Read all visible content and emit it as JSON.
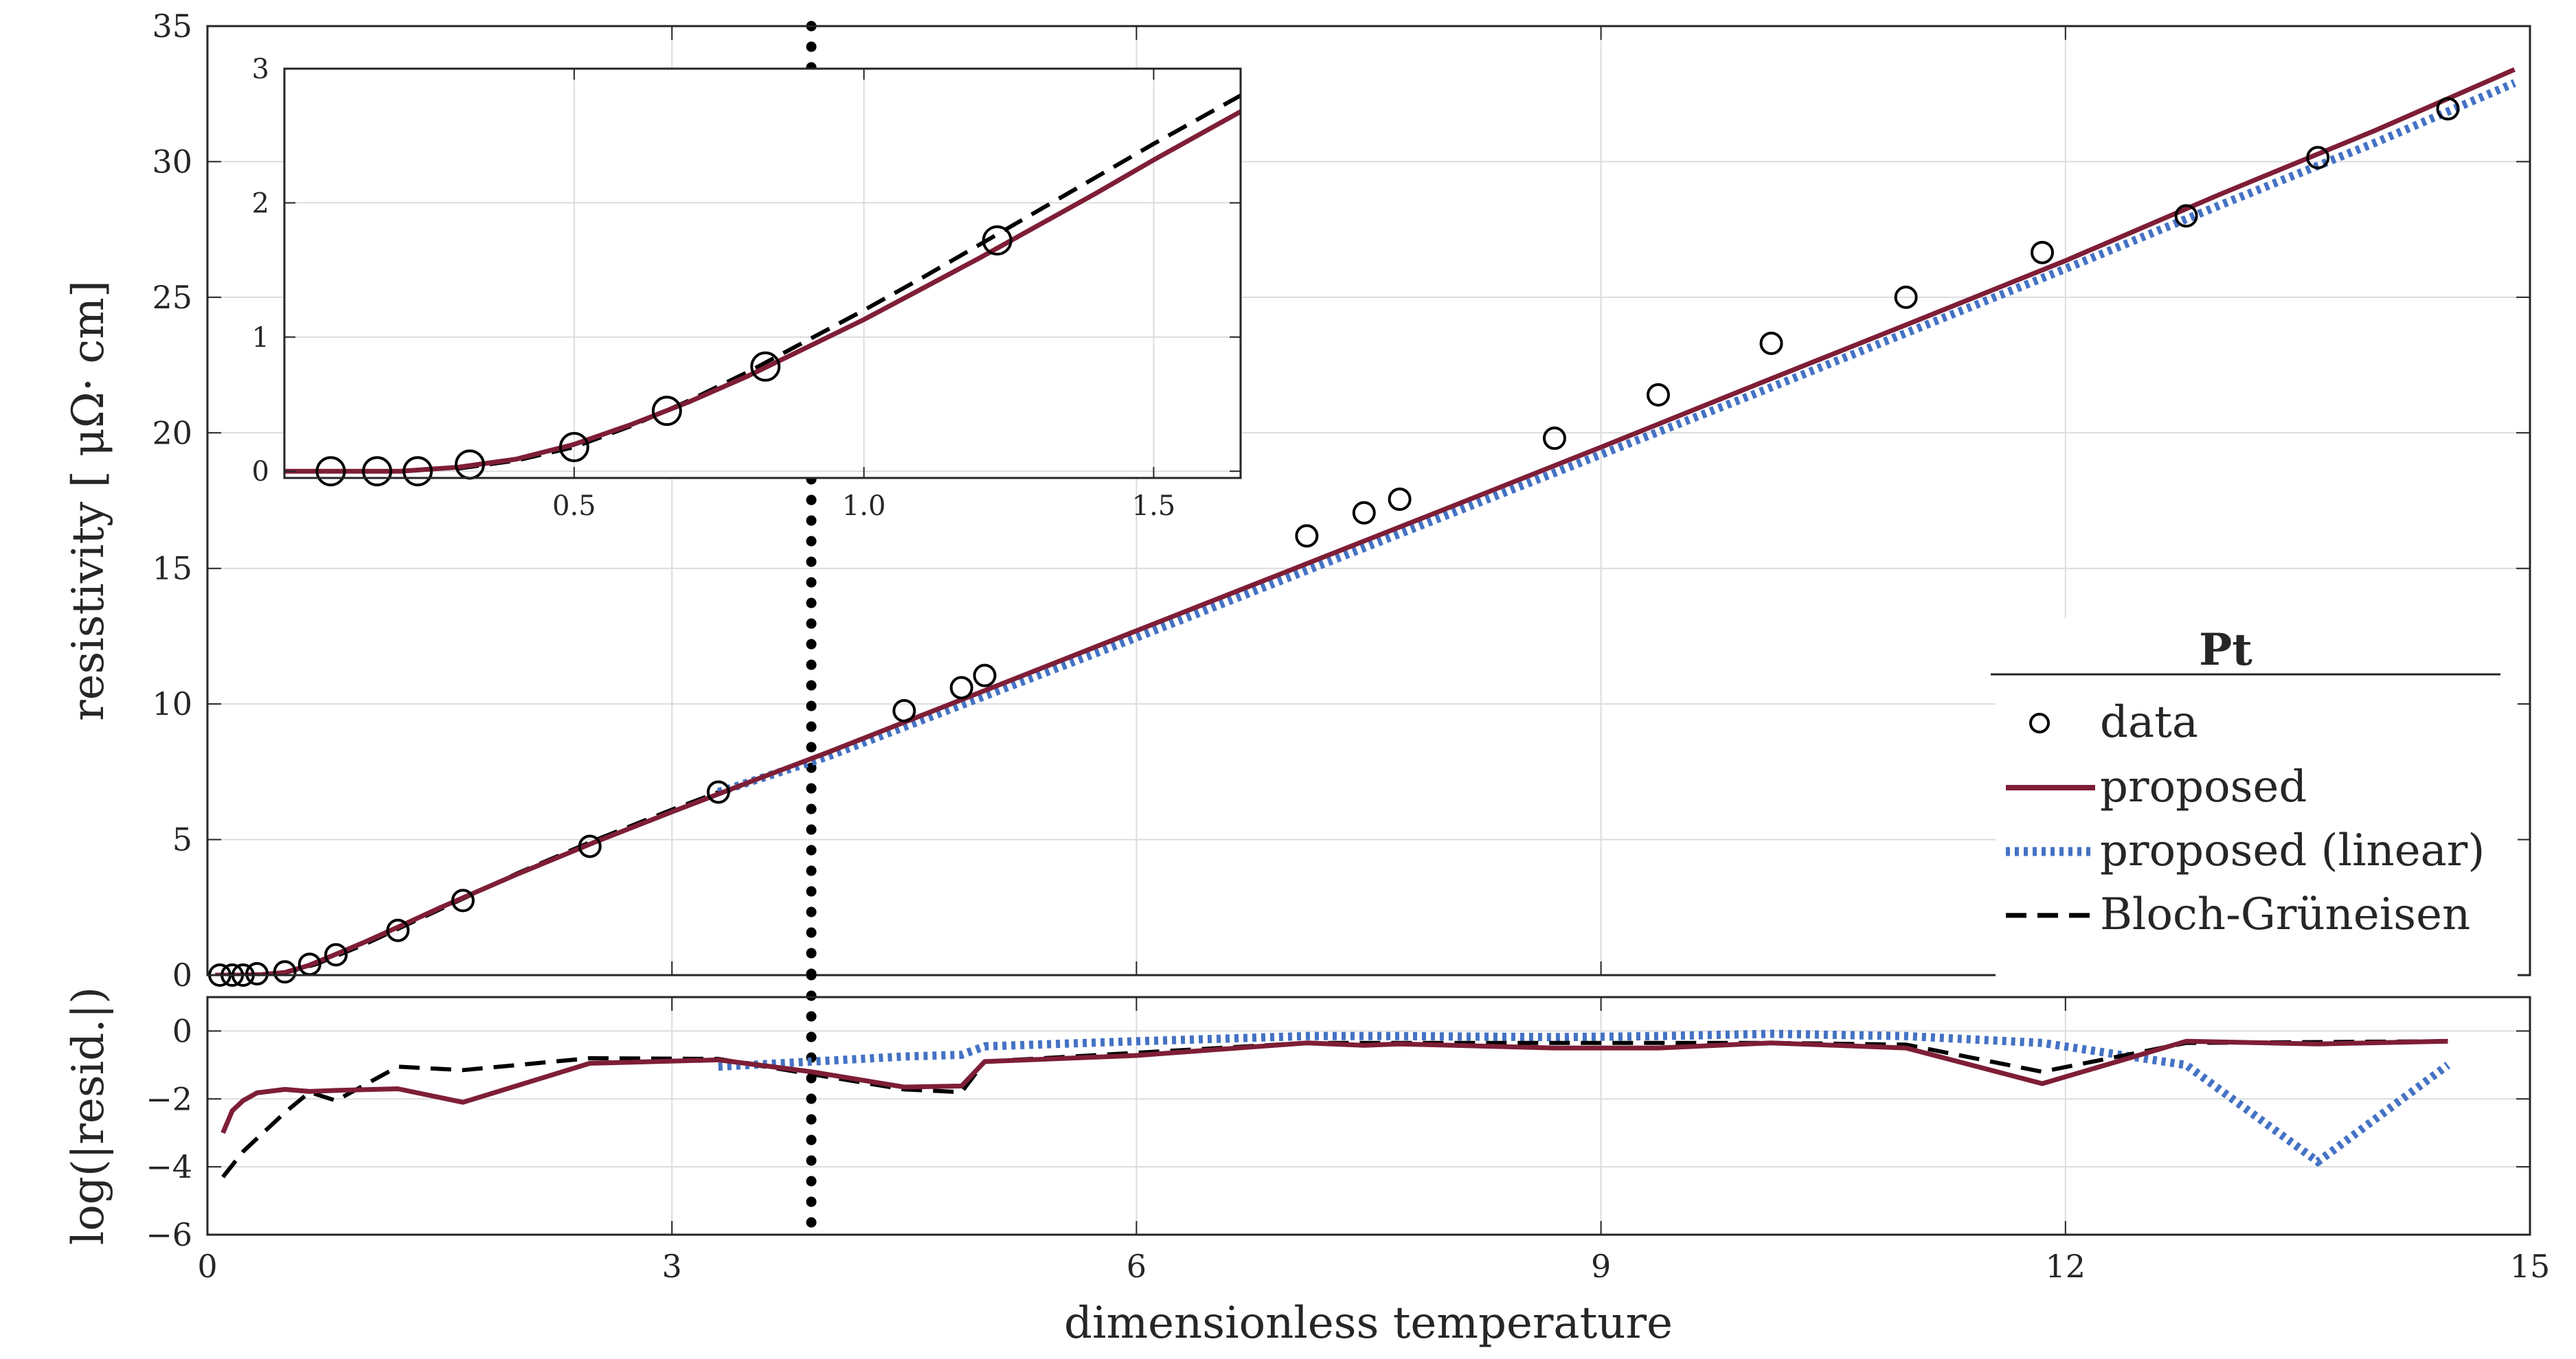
{
  "colors": {
    "proposed": "#7e1e36",
    "proposed_linear": "#4472c4",
    "bloch": "#000000",
    "data": "#000000",
    "grid": "#dcdcdc",
    "axis": "#262626"
  },
  "chart_data": [
    {
      "type": "line",
      "panel": "main",
      "xlabel": "",
      "ylabel": "resistivity [ μΩ· cm]",
      "xlim": [
        0,
        15
      ],
      "ylim": [
        0,
        35
      ],
      "x_ticks": [
        "0",
        "3",
        "6",
        "9",
        "12",
        "15"
      ],
      "y_ticks": [
        "0",
        "5",
        "10",
        "15",
        "20",
        "25",
        "30",
        "35"
      ],
      "grid": true,
      "vline_x": 3.9,
      "legend": {
        "placement": "bottom-right",
        "title": "Pt",
        "entries": [
          "data",
          "proposed",
          "proposed (linear)",
          "Bloch-Grüneisen"
        ]
      },
      "series": [
        {
          "name": "data",
          "style": "markers",
          "points": [
            [
              0.08,
              0.0
            ],
            [
              0.16,
              0.0
            ],
            [
              0.23,
              0.0
            ],
            [
              0.32,
              0.05
            ],
            [
              0.5,
              0.12
            ],
            [
              0.66,
              0.4
            ],
            [
              0.83,
              0.75
            ],
            [
              1.23,
              1.65
            ],
            [
              1.65,
              2.75
            ],
            [
              2.47,
              4.75
            ],
            [
              3.3,
              6.75
            ],
            [
              4.5,
              9.75
            ],
            [
              4.87,
              10.6
            ],
            [
              5.02,
              11.05
            ],
            [
              7.1,
              16.2
            ],
            [
              7.47,
              17.05
            ],
            [
              7.7,
              17.55
            ],
            [
              8.7,
              19.8
            ],
            [
              9.37,
              21.4
            ],
            [
              10.1,
              23.3
            ],
            [
              10.97,
              25.0
            ],
            [
              11.85,
              26.65
            ],
            [
              12.78,
              28.0
            ],
            [
              13.63,
              30.15
            ],
            [
              14.47,
              31.95
            ]
          ]
        },
        {
          "name": "proposed",
          "style": "solid",
          "points": [
            [
              0.05,
              0.0
            ],
            [
              0.2,
              0.0
            ],
            [
              0.35,
              0.02
            ],
            [
              0.5,
              0.1
            ],
            [
              0.65,
              0.35
            ],
            [
              0.8,
              0.7
            ],
            [
              1.0,
              1.18
            ],
            [
              1.25,
              1.82
            ],
            [
              1.5,
              2.48
            ],
            [
              2.0,
              3.72
            ],
            [
              2.5,
              4.9
            ],
            [
              3.0,
              6.02
            ],
            [
              3.5,
              7.12
            ],
            [
              4.0,
              8.2
            ],
            [
              5.0,
              10.45
            ],
            [
              6.0,
              12.7
            ],
            [
              7.0,
              14.95
            ],
            [
              8.0,
              17.2
            ],
            [
              9.0,
              19.47
            ],
            [
              10.0,
              21.77
            ],
            [
              11.0,
              24.05
            ],
            [
              12.0,
              26.35
            ],
            [
              13.0,
              28.8
            ],
            [
              14.0,
              31.15
            ],
            [
              14.9,
              33.4
            ]
          ]
        },
        {
          "name": "proposed (linear)",
          "style": "dotted",
          "points": [
            [
              3.3,
              6.75
            ],
            [
              4.0,
              8.05
            ],
            [
              5.0,
              10.25
            ],
            [
              6.0,
              12.45
            ],
            [
              7.0,
              14.7
            ],
            [
              8.0,
              16.95
            ],
            [
              9.0,
              19.2
            ],
            [
              10.0,
              21.45
            ],
            [
              11.0,
              23.75
            ],
            [
              12.0,
              26.05
            ],
            [
              13.0,
              28.4
            ],
            [
              14.0,
              30.7
            ],
            [
              14.9,
              32.9
            ]
          ]
        },
        {
          "name": "Bloch-Grüneisen",
          "style": "dashed",
          "points": [
            [
              0.05,
              0.0
            ],
            [
              0.3,
              0.0
            ],
            [
              0.5,
              0.08
            ],
            [
              0.7,
              0.4
            ],
            [
              1.0,
              1.1
            ],
            [
              1.5,
              2.42
            ],
            [
              2.0,
              3.75
            ],
            [
              2.5,
              4.97
            ],
            [
              3.0,
              6.1
            ],
            [
              3.3,
              6.75
            ]
          ]
        }
      ]
    },
    {
      "type": "line",
      "panel": "residuals",
      "xlabel": "dimensionless temperature",
      "ylabel": "log(|resid.|)",
      "xlim": [
        0,
        15
      ],
      "ylim": [
        -6,
        1
      ],
      "x_ticks": [
        "0",
        "3",
        "6",
        "9",
        "12",
        "15"
      ],
      "y_ticks": [
        "0",
        "−2",
        "−4",
        "−6"
      ],
      "grid": true,
      "vline_x": 3.9,
      "series": [
        {
          "name": "proposed",
          "style": "solid",
          "points": [
            [
              0.1,
              -3.0
            ],
            [
              0.16,
              -2.35
            ],
            [
              0.23,
              -2.05
            ],
            [
              0.32,
              -1.82
            ],
            [
              0.5,
              -1.72
            ],
            [
              0.66,
              -1.78
            ],
            [
              0.83,
              -1.75
            ],
            [
              1.23,
              -1.7
            ],
            [
              1.65,
              -2.1
            ],
            [
              2.47,
              -0.95
            ],
            [
              3.3,
              -0.85
            ],
            [
              3.9,
              -1.2
            ],
            [
              4.5,
              -1.65
            ],
            [
              4.87,
              -1.62
            ],
            [
              5.02,
              -0.9
            ],
            [
              6.0,
              -0.72
            ],
            [
              7.1,
              -0.35
            ],
            [
              7.47,
              -0.42
            ],
            [
              7.7,
              -0.38
            ],
            [
              8.7,
              -0.5
            ],
            [
              9.37,
              -0.5
            ],
            [
              10.1,
              -0.35
            ],
            [
              10.97,
              -0.5
            ],
            [
              11.85,
              -1.55
            ],
            [
              12.78,
              -0.3
            ],
            [
              13.63,
              -0.38
            ],
            [
              14.47,
              -0.3
            ]
          ]
        },
        {
          "name": "proposed (linear)",
          "style": "dotted",
          "points": [
            [
              3.3,
              -1.05
            ],
            [
              3.9,
              -0.9
            ],
            [
              4.5,
              -0.75
            ],
            [
              4.87,
              -0.7
            ],
            [
              5.02,
              -0.45
            ],
            [
              6.0,
              -0.3
            ],
            [
              7.1,
              -0.15
            ],
            [
              7.7,
              -0.15
            ],
            [
              8.7,
              -0.18
            ],
            [
              9.37,
              -0.15
            ],
            [
              10.1,
              -0.08
            ],
            [
              10.97,
              -0.15
            ],
            [
              11.85,
              -0.35
            ],
            [
              12.78,
              -1.0
            ],
            [
              13.63,
              -3.85
            ],
            [
              14.47,
              -1.0
            ]
          ]
        },
        {
          "name": "Bloch-Grüneisen",
          "style": "dashed",
          "points": [
            [
              0.1,
              -4.3
            ],
            [
              0.23,
              -3.55
            ],
            [
              0.5,
              -2.4
            ],
            [
              0.66,
              -1.8
            ],
            [
              0.83,
              -2.05
            ],
            [
              1.23,
              -1.05
            ],
            [
              1.65,
              -1.15
            ],
            [
              2.47,
              -0.8
            ],
            [
              3.3,
              -0.82
            ],
            [
              4.5,
              -1.72
            ],
            [
              4.87,
              -1.8
            ],
            [
              5.02,
              -0.9
            ],
            [
              7.1,
              -0.35
            ],
            [
              10.1,
              -0.35
            ],
            [
              10.97,
              -0.4
            ],
            [
              11.85,
              -1.2
            ],
            [
              12.78,
              -0.35
            ],
            [
              14.47,
              -0.3
            ]
          ]
        }
      ]
    },
    {
      "type": "line",
      "panel": "inset",
      "xlabel": "",
      "ylabel": "",
      "xlim": [
        0.0,
        1.65
      ],
      "ylim": [
        -0.05,
        3.0
      ],
      "x_ticks": [
        [
          "0.5",
          0.5
        ],
        [
          "1.0",
          1.0
        ],
        [
          "1.5",
          1.5
        ]
      ],
      "y_ticks": [
        [
          "0",
          0
        ],
        [
          "1",
          1
        ],
        [
          "2",
          2
        ],
        [
          "3",
          3
        ]
      ],
      "grid": true,
      "series": [
        {
          "name": "data",
          "style": "markers",
          "points": [
            [
              0.08,
              0.0
            ],
            [
              0.16,
              0.0
            ],
            [
              0.23,
              0.0
            ],
            [
              0.32,
              0.05
            ],
            [
              0.5,
              0.18
            ],
            [
              0.66,
              0.45
            ],
            [
              0.83,
              0.78
            ],
            [
              1.23,
              1.72
            ]
          ]
        },
        {
          "name": "proposed",
          "style": "solid",
          "points": [
            [
              0.0,
              0.0
            ],
            [
              0.1,
              0.0
            ],
            [
              0.2,
              0.0
            ],
            [
              0.3,
              0.03
            ],
            [
              0.4,
              0.09
            ],
            [
              0.5,
              0.2
            ],
            [
              0.6,
              0.35
            ],
            [
              0.7,
              0.52
            ],
            [
              0.8,
              0.71
            ],
            [
              0.9,
              0.92
            ],
            [
              1.0,
              1.13
            ],
            [
              1.1,
              1.36
            ],
            [
              1.2,
              1.59
            ],
            [
              1.3,
              1.83
            ],
            [
              1.4,
              2.07
            ],
            [
              1.5,
              2.32
            ],
            [
              1.65,
              2.68
            ]
          ]
        },
        {
          "name": "Bloch-Grüneisen",
          "style": "dashed",
          "points": [
            [
              0.3,
              0.02
            ],
            [
              0.4,
              0.08
            ],
            [
              0.5,
              0.18
            ],
            [
              0.6,
              0.34
            ],
            [
              0.7,
              0.53
            ],
            [
              0.8,
              0.74
            ],
            [
              0.9,
              0.97
            ],
            [
              1.0,
              1.2
            ],
            [
              1.1,
              1.44
            ],
            [
              1.2,
              1.69
            ],
            [
              1.3,
              1.94
            ],
            [
              1.4,
              2.19
            ],
            [
              1.5,
              2.44
            ],
            [
              1.65,
              2.8
            ]
          ]
        }
      ]
    }
  ]
}
